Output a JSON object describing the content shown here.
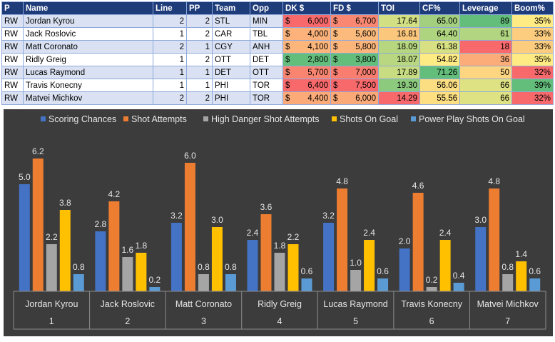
{
  "table": {
    "headers": [
      "P",
      "Name",
      "Line",
      "PP",
      "Team",
      "Opp",
      "DK $",
      "FD $",
      "TOI",
      "CF%",
      "Leverage",
      "Boom%"
    ],
    "rows": [
      {
        "p": "RW",
        "name": "Jordan Kyrou",
        "line": "2",
        "pp": "2",
        "team": "STL",
        "opp": "MIN",
        "dk_sym": "$",
        "dk": "6,000",
        "fd_sym": "$",
        "fd": "6,700",
        "toi": "17.64",
        "cf": "65.00",
        "leverage": "89",
        "boom": "35%"
      },
      {
        "p": "RW",
        "name": "Jack Roslovic",
        "line": "1",
        "pp": "2",
        "team": "CAR",
        "opp": "TBL",
        "dk_sym": "$",
        "dk": "4,000",
        "fd_sym": "$",
        "fd": "5,600",
        "toi": "16.81",
        "cf": "64.40",
        "leverage": "61",
        "boom": "33%"
      },
      {
        "p": "RW",
        "name": "Matt Coronato",
        "line": "2",
        "pp": "1",
        "team": "CGY",
        "opp": "ANH",
        "dk_sym": "$",
        "dk": "4,100",
        "fd_sym": "$",
        "fd": "5,800",
        "toi": "18.09",
        "cf": "61.38",
        "leverage": "18",
        "boom": "33%"
      },
      {
        "p": "RW",
        "name": "Ridly Greig",
        "line": "1",
        "pp": "2",
        "team": "OTT",
        "opp": "DET",
        "dk_sym": "$",
        "dk": "2,800",
        "fd_sym": "$",
        "fd": "3,800",
        "toi": "18.07",
        "cf": "54.82",
        "leverage": "36",
        "boom": "35%"
      },
      {
        "p": "RW",
        "name": "Lucas Raymond",
        "line": "1",
        "pp": "1",
        "team": "DET",
        "opp": "OTT",
        "dk_sym": "$",
        "dk": "5,700",
        "fd_sym": "$",
        "fd": "7,000",
        "toi": "17.89",
        "cf": "71.26",
        "leverage": "50",
        "boom": "32%"
      },
      {
        "p": "RW",
        "name": "Travis Konecny",
        "line": "1",
        "pp": "1",
        "team": "PHI",
        "opp": "TOR",
        "dk_sym": "$",
        "dk": "6,400",
        "fd_sym": "$",
        "fd": "7,500",
        "toi": "19.30",
        "cf": "56.06",
        "leverage": "66",
        "boom": "39%"
      },
      {
        "p": "RW",
        "name": "Matvei Michkov",
        "line": "2",
        "pp": "2",
        "team": "PHI",
        "opp": "TOR",
        "dk_sym": "$",
        "dk": "4,400",
        "fd_sym": "$",
        "fd": "6,000",
        "toi": "14.29",
        "cf": "55.56",
        "leverage": "66",
        "boom": "32%"
      }
    ],
    "cell_colors": {
      "dk": [
        "#f8696b",
        "#fcb27a",
        "#fcb57b",
        "#63be7b",
        "#f98570",
        "#f8696b",
        "#fbaa78"
      ],
      "fd": [
        "#f98771",
        "#fcbb7c",
        "#fcb57b",
        "#63be7b",
        "#f97e6f",
        "#f8696b",
        "#fba977"
      ],
      "toi": [
        "#d2df82",
        "#fbc77d",
        "#b6d680",
        "#b8d780",
        "#c8dc81",
        "#8cca7e",
        "#f8696b"
      ],
      "cf": [
        "#a3d07f",
        "#afd47f",
        "#d7e083",
        "#ffeb84",
        "#63be7b",
        "#fbde82",
        "#fedf82"
      ],
      "leverage": [
        "#63be7b",
        "#b1d580",
        "#f8696b",
        "#fbac78",
        "#fed681",
        "#dee283",
        "#dee283"
      ],
      "boom": [
        "#ffeb84",
        "#fccd7e",
        "#fccd7e",
        "#ffeb84",
        "#f8696b",
        "#63be7b",
        "#f8696b"
      ]
    }
  },
  "chart_data": {
    "type": "bar",
    "categories": [
      "Jordan Kyrou",
      "Jack Roslovic",
      "Matt Coronato",
      "Ridly Greig",
      "Lucas Raymond",
      "Travis Konecny",
      "Matvei Michkov"
    ],
    "category_numbers": [
      "1",
      "2",
      "3",
      "4",
      "5",
      "6",
      "7"
    ],
    "series": [
      {
        "name": "Scoring Chances",
        "color": "#4472c4",
        "values": [
          5.0,
          2.8,
          3.2,
          2.4,
          3.2,
          2.0,
          3.0
        ]
      },
      {
        "name": "Shot Attempts",
        "color": "#ed7d31",
        "values": [
          6.2,
          4.2,
          6.0,
          3.6,
          4.8,
          4.6,
          4.8
        ]
      },
      {
        "name": "High Danger Shot Attempts",
        "color": "#a5a5a5",
        "values": [
          2.2,
          1.6,
          0.8,
          1.8,
          1.0,
          0.2,
          0.8
        ]
      },
      {
        "name": "Shots On Goal",
        "color": "#ffc000",
        "values": [
          3.8,
          1.8,
          3.0,
          2.2,
          2.4,
          2.4,
          1.4
        ]
      },
      {
        "name": "Power Play Shots On Goal",
        "color": "#5b9bd5",
        "values": [
          0.8,
          0.2,
          0.8,
          0.6,
          0.6,
          0.4,
          0.6
        ]
      }
    ],
    "value_labels": [
      [
        "5.0",
        "2.8",
        "3.2",
        "2.4",
        "3.2",
        "2.0",
        "3.0"
      ],
      [
        "6.2",
        "4.2",
        "6.0",
        "3.6",
        "4.8",
        "4.6",
        "4.8"
      ],
      [
        "2.2",
        "1.6",
        "0.8",
        "1.8",
        "1.0",
        "0.2",
        "0.8"
      ],
      [
        "3.8",
        "1.8",
        "3.0",
        "2.2",
        "2.4",
        "2.4",
        "1.4"
      ],
      [
        "0.8",
        "0.2",
        "0.8",
        "0.6",
        "0.6",
        "0.4",
        "0.6"
      ]
    ],
    "ylim": [
      0,
      6.5
    ],
    "legend": "top",
    "grid": false
  }
}
